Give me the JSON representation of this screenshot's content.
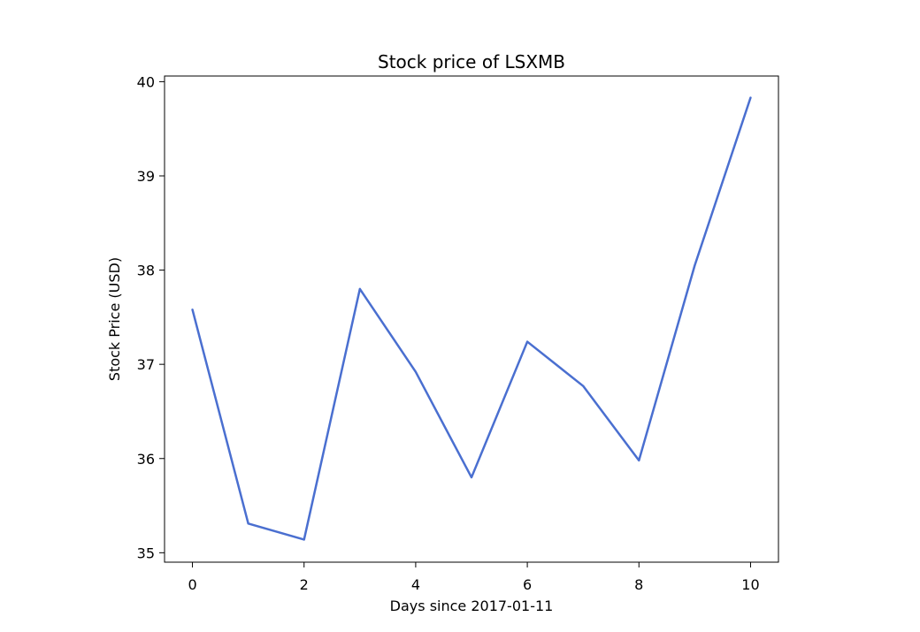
{
  "chart_data": {
    "type": "line",
    "title": "Stock price of LSXMB",
    "xlabel": "Days since 2017-01-11",
    "ylabel": "Stock Price (USD)",
    "xlim": [
      -0.5,
      10.5
    ],
    "ylim": [
      34.9,
      40.06
    ],
    "xticks": [
      0,
      2,
      4,
      6,
      8,
      10
    ],
    "yticks": [
      35,
      36,
      37,
      38,
      39,
      40
    ],
    "grid": false,
    "legend": "none",
    "series": [
      {
        "color": "#4a6fd0",
        "x": [
          0,
          1,
          2,
          3,
          4,
          5,
          6,
          7,
          8,
          9,
          10
        ],
        "y": [
          37.58,
          35.31,
          35.14,
          37.8,
          36.92,
          35.8,
          37.24,
          36.77,
          35.98,
          38.05,
          39.83
        ]
      }
    ]
  }
}
